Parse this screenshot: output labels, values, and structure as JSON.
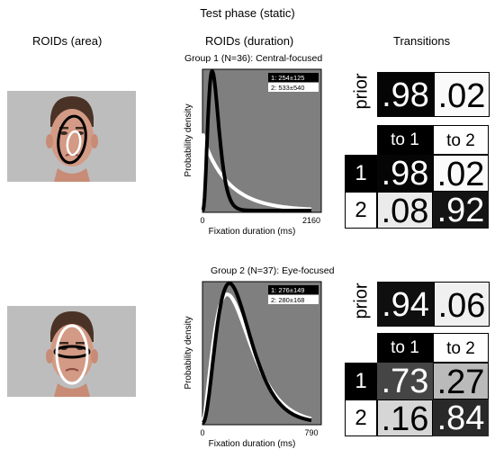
{
  "title": "Test phase (static)",
  "columns": {
    "roids_area": "ROIDs (area)",
    "roids_duration": "ROIDs (duration)",
    "transitions": "Transitions"
  },
  "colors": {
    "plot_bg": "#7f7f7f",
    "black": "#000000",
    "white": "#ffffff"
  },
  "groups": [
    {
      "subtitle": "Group 1 (N=36): Central-focused",
      "roi1_shape": "small-white-ellipse",
      "roi2_shape": "large-black-ellipse",
      "prior": {
        "label": "prior",
        "p1": ".98",
        "p2": ".02",
        "v1": 0.98,
        "v2": 0.02
      },
      "matrix": {
        "col1": "to 1",
        "col2": "to 2",
        "rows": [
          {
            "label": "1",
            "c1": ".98",
            "c2": ".02",
            "v1": 0.98,
            "v2": 0.02
          },
          {
            "label": "2",
            "c1": ".08",
            "c2": ".92",
            "v1": 0.08,
            "v2": 0.92
          }
        ]
      }
    },
    {
      "subtitle": "Group 2 (N=37): Eye-focused",
      "roi1_shape": "black-eye-band",
      "roi2_shape": "large-white-ellipse",
      "prior": {
        "label": "prior",
        "p1": ".94",
        "p2": ".06",
        "v1": 0.94,
        "v2": 0.06
      },
      "matrix": {
        "col1": "to 1",
        "col2": "to 2",
        "rows": [
          {
            "label": "1",
            "c1": ".73",
            "c2": ".27",
            "v1": 0.73,
            "v2": 0.27
          },
          {
            "label": "2",
            "c1": ".16",
            "c2": ".84",
            "v1": 0.16,
            "v2": 0.84
          }
        ]
      }
    }
  ],
  "chart_data": [
    {
      "type": "line",
      "title": "Group 1 (N=36): Central-focused",
      "xlabel": "Fixation duration (ms)",
      "ylabel": "Probability density",
      "xlim": [
        0,
        2160
      ],
      "xticks": [
        "0",
        "2160"
      ],
      "grid": false,
      "legend_placement": "top-right",
      "series": [
        {
          "name": "1: 254±125",
          "color": "#000000",
          "mean": 254,
          "sd": 125
        },
        {
          "name": "2: 533±540",
          "color": "#ffffff",
          "mean": 533,
          "sd": 540
        }
      ]
    },
    {
      "type": "line",
      "title": "Group 2 (N=37): Eye-focused",
      "xlabel": "Fixation duration (ms)",
      "ylabel": "Probability density",
      "xlim": [
        0,
        790
      ],
      "xticks": [
        "0",
        "790"
      ],
      "grid": false,
      "legend_placement": "top-right",
      "series": [
        {
          "name": "1: 276±149",
          "color": "#000000",
          "mean": 276,
          "sd": 149
        },
        {
          "name": "2: 280±168",
          "color": "#ffffff",
          "mean": 280,
          "sd": 168
        }
      ]
    }
  ]
}
